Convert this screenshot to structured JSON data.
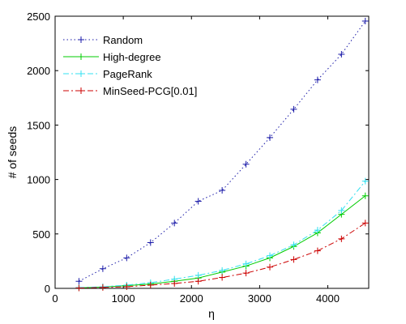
{
  "chart_data": {
    "type": "line",
    "xlabel": "η",
    "ylabel": "# of seeds",
    "xlim": [
      0,
      4600
    ],
    "ylim": [
      0,
      2500
    ],
    "xticks": [
      0,
      1000,
      2000,
      3000,
      4000
    ],
    "yticks": [
      0,
      500,
      1000,
      1500,
      2000,
      2500
    ],
    "x": [
      350,
      700,
      1050,
      1400,
      1750,
      2100,
      2450,
      2800,
      3150,
      3500,
      3850,
      4200,
      4550
    ],
    "legend_position": "top-left",
    "grid": false,
    "series": [
      {
        "name": "Random",
        "color": "#1a1aa8",
        "line": "dotted",
        "marker": "+",
        "values": [
          65,
          180,
          280,
          420,
          600,
          800,
          900,
          1140,
          1385,
          1645,
          1915,
          2150,
          2455
        ]
      },
      {
        "name": "High-degree",
        "color": "#00cc00",
        "line": "solid",
        "marker": "+",
        "values": [
          5,
          12,
          25,
          40,
          65,
          95,
          150,
          205,
          280,
          385,
          510,
          680,
          850
        ]
      },
      {
        "name": "PageRank",
        "color": "#33e0f0",
        "line": "dash-dot",
        "marker": "+",
        "values": [
          8,
          15,
          30,
          52,
          85,
          120,
          165,
          225,
          300,
          400,
          535,
          715,
          985
        ]
      },
      {
        "name": "MinSeed-PCG[0.01]",
        "color": "#cc0000",
        "line": "dash-dot",
        "marker": "+",
        "values": [
          4,
          8,
          15,
          30,
          45,
          65,
          100,
          140,
          195,
          265,
          345,
          455,
          600
        ]
      }
    ]
  }
}
